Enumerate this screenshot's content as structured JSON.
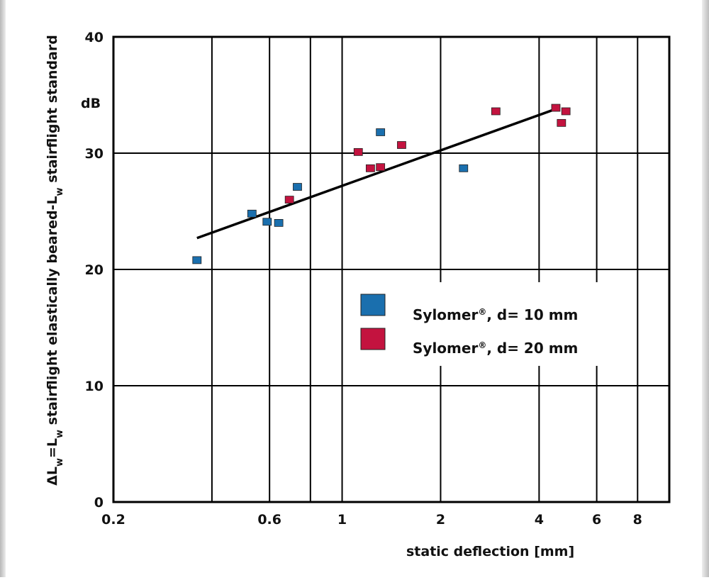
{
  "chart_data": {
    "type": "scatter",
    "title": "",
    "xlabel": "static deflection [mm]",
    "ylabel_parts": [
      {
        "t": "ΔL",
        "sub": false
      },
      {
        "t": "w",
        "sub": true
      },
      {
        "t": "=L",
        "sub": false
      },
      {
        "t": "w",
        "sub": true
      },
      {
        "t": " stairflight elastically beared-L",
        "sub": false
      },
      {
        "t": "w",
        "sub": true
      },
      {
        "t": " stairflight standard",
        "sub": false
      }
    ],
    "y_unit": "dB",
    "x_scale": "log",
    "xlim": [
      0.2,
      10
    ],
    "ylim": [
      0,
      40
    ],
    "x_ticks": [
      0.2,
      0.6,
      1,
      2,
      4,
      6,
      8
    ],
    "x_tick_labels": [
      "0.2",
      "0.6",
      "1",
      "2",
      "4",
      "6",
      "8"
    ],
    "x_gridlines": [
      0.4,
      0.6,
      0.8,
      1,
      2,
      4,
      6,
      8
    ],
    "y_ticks": [
      0,
      10,
      20,
      30,
      40
    ],
    "y_tick_labels": [
      "0",
      "10",
      "20",
      "30",
      "40"
    ],
    "grid": true,
    "legend_position": "center-right",
    "series": [
      {
        "name": "Sylomer®, d= 10 mm",
        "name_main": "Sylomer",
        "name_sup": "®",
        "name_rest": ", d= 10 mm",
        "color": "#1a6fae",
        "points": [
          [
            0.36,
            20.8
          ],
          [
            0.53,
            24.8
          ],
          [
            0.59,
            24.1
          ],
          [
            0.64,
            24.0
          ],
          [
            0.73,
            27.1
          ],
          [
            1.31,
            31.8
          ],
          [
            2.35,
            28.7
          ]
        ]
      },
      {
        "name": "Sylomer®, d= 20 mm",
        "name_main": "Sylomer",
        "name_sup": "®",
        "name_rest": ", d= 20 mm",
        "color": "#c3133f",
        "points": [
          [
            0.69,
            26.0
          ],
          [
            1.12,
            30.1
          ],
          [
            1.22,
            28.7
          ],
          [
            1.31,
            28.8
          ],
          [
            1.52,
            30.7
          ],
          [
            2.95,
            33.6
          ],
          [
            4.5,
            33.9
          ],
          [
            4.68,
            32.6
          ],
          [
            4.83,
            33.6
          ]
        ]
      }
    ],
    "trend_line": {
      "x": [
        0.36,
        4.5
      ],
      "y": [
        22.7,
        33.8
      ],
      "color": "#000000"
    }
  }
}
